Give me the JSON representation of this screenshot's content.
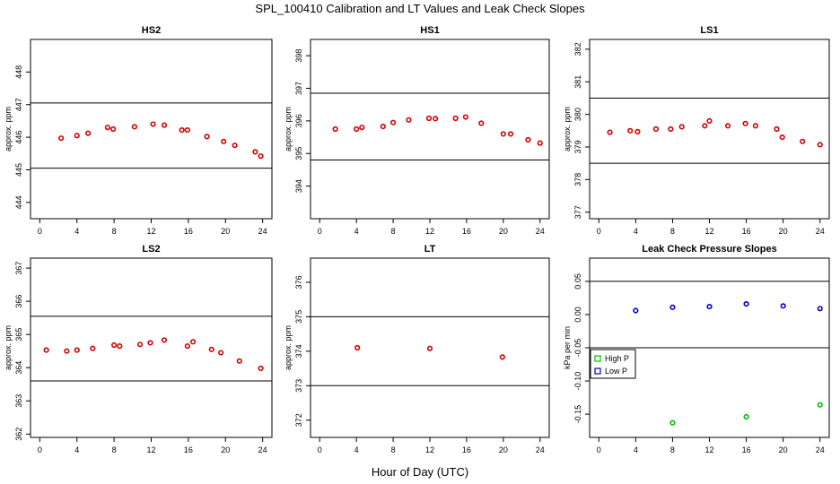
{
  "figure": {
    "title": "SPL_100410  Calibration and LT Values and Leak Check Slopes",
    "xlabel": "Hour of Day (UTC)"
  },
  "colors": {
    "calibration": "#d40000",
    "high_p": "#00c000",
    "low_p": "#0000cc"
  },
  "chart_data": [
    {
      "type": "scatter",
      "title": "HS2",
      "ylabel": "approx. ppm",
      "xlim": [
        -1,
        25
      ],
      "ylim": [
        443.5,
        449
      ],
      "xticks": [
        0,
        4,
        8,
        12,
        16,
        20,
        24
      ],
      "yticks": [
        444,
        445,
        446,
        447,
        448
      ],
      "hlines": [
        447.05,
        445.05
      ],
      "series": [
        {
          "color": "#d40000",
          "x": [
            2.3,
            4.0,
            5.2,
            7.3,
            7.9,
            10.2,
            12.2,
            13.4,
            15.3,
            15.9,
            18.0,
            19.8,
            21.0,
            23.2,
            23.8
          ],
          "y": [
            445.97,
            446.05,
            446.12,
            446.3,
            446.25,
            446.32,
            446.4,
            446.37,
            446.22,
            446.22,
            446.02,
            445.87,
            445.75,
            445.55,
            445.42
          ]
        }
      ]
    },
    {
      "type": "scatter",
      "title": "HS1",
      "ylabel": "approx. ppm",
      "xlim": [
        -1,
        25
      ],
      "ylim": [
        393,
        398.5
      ],
      "xticks": [
        0,
        4,
        8,
        12,
        16,
        20,
        24
      ],
      "yticks": [
        394,
        395,
        396,
        397,
        398
      ],
      "hlines": [
        396.85,
        394.8
      ],
      "series": [
        {
          "color": "#d40000",
          "x": [
            1.7,
            4.0,
            4.6,
            6.9,
            8.0,
            9.7,
            11.9,
            12.6,
            14.8,
            15.9,
            17.6,
            20.0,
            20.8,
            22.7,
            24.0
          ],
          "y": [
            395.75,
            395.75,
            395.8,
            395.83,
            395.95,
            396.03,
            396.08,
            396.07,
            396.08,
            396.12,
            395.93,
            395.6,
            395.6,
            395.42,
            395.32
          ]
        }
      ]
    },
    {
      "type": "scatter",
      "title": "LS1",
      "ylabel": "approx. ppm",
      "xlim": [
        -1,
        25
      ],
      "ylim": [
        376.8,
        382.3
      ],
      "xticks": [
        0,
        4,
        8,
        12,
        16,
        20,
        24
      ],
      "yticks": [
        377,
        378,
        379,
        380,
        381,
        382
      ],
      "hlines": [
        380.5,
        378.5
      ],
      "series": [
        {
          "color": "#d40000",
          "x": [
            1.2,
            3.4,
            4.2,
            6.2,
            7.8,
            9.0,
            11.5,
            12.0,
            14.0,
            15.9,
            17.0,
            19.3,
            19.9,
            22.1,
            24.0
          ],
          "y": [
            379.45,
            379.5,
            379.47,
            379.55,
            379.55,
            379.62,
            379.65,
            379.8,
            379.65,
            379.72,
            379.65,
            379.55,
            379.3,
            379.17,
            379.07
          ]
        }
      ]
    },
    {
      "type": "scatter",
      "title": "LS2",
      "ylabel": "approx. ppm",
      "xlim": [
        -1,
        25
      ],
      "ylim": [
        361.9,
        367.3
      ],
      "xticks": [
        0,
        4,
        8,
        12,
        16,
        20,
        24
      ],
      "yticks": [
        362,
        363,
        364,
        365,
        366,
        367
      ],
      "hlines": [
        365.55,
        363.6
      ],
      "series": [
        {
          "color": "#d40000",
          "x": [
            0.7,
            2.9,
            4.0,
            5.7,
            8.0,
            8.6,
            10.8,
            11.9,
            13.4,
            15.9,
            16.5,
            18.5,
            19.5,
            21.5,
            23.8
          ],
          "y": [
            364.53,
            364.5,
            364.53,
            364.58,
            364.68,
            364.65,
            364.7,
            364.75,
            364.83,
            364.65,
            364.78,
            364.55,
            364.45,
            364.2,
            363.98
          ]
        }
      ]
    },
    {
      "type": "scatter",
      "title": "LT",
      "ylabel": "approx. ppm",
      "xlim": [
        -1,
        25
      ],
      "ylim": [
        371.5,
        376.7
      ],
      "xticks": [
        0,
        4,
        8,
        12,
        16,
        20,
        24
      ],
      "yticks": [
        372,
        373,
        374,
        375,
        376
      ],
      "hlines": [
        375.0,
        373.0
      ],
      "series": [
        {
          "color": "#d40000",
          "x": [
            4.1,
            12.0,
            19.9
          ],
          "y": [
            374.1,
            374.08,
            373.83
          ]
        }
      ]
    },
    {
      "type": "scatter",
      "title": "Leak Check Pressure Slopes",
      "ylabel": "kPa per min",
      "xlim": [
        -1,
        25
      ],
      "ylim": [
        -0.185,
        0.085
      ],
      "xticks": [
        0,
        4,
        8,
        12,
        16,
        20,
        24
      ],
      "yticks": [
        -0.15,
        -0.1,
        -0.05,
        0.0,
        0.05
      ],
      "ytick_labels": [
        "-0.15",
        "-0.10",
        "-0.05",
        "0.00",
        "0.05"
      ],
      "hlines": [
        0.05,
        -0.05
      ],
      "legend": {
        "placement": "left",
        "entries": [
          {
            "label": "High P",
            "color": "#00c000"
          },
          {
            "label": "Low P",
            "color": "#0000cc"
          }
        ]
      },
      "series": [
        {
          "name": "High P",
          "color": "#00c000",
          "x": [
            8,
            16,
            24
          ],
          "y": [
            -0.163,
            -0.154,
            -0.136
          ]
        },
        {
          "name": "Low P",
          "color": "#0000cc",
          "x": [
            4,
            8,
            12,
            16,
            20,
            24
          ],
          "y": [
            0.006,
            0.011,
            0.012,
            0.016,
            0.013,
            0.009
          ]
        }
      ]
    }
  ]
}
